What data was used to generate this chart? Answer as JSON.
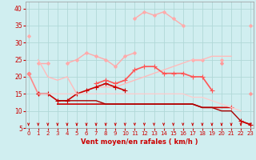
{
  "xlabel": "Vent moyen/en rafales ( km/h )",
  "background_color": "#d0eef0",
  "grid_color": "#b0d8d8",
  "x": [
    0,
    1,
    2,
    3,
    4,
    5,
    6,
    7,
    8,
    9,
    10,
    11,
    12,
    13,
    14,
    15,
    16,
    17,
    18,
    19,
    20,
    21,
    22,
    23
  ],
  "series": [
    {
      "color": "#ffaaaa",
      "data": [
        32,
        null,
        null,
        null,
        null,
        null,
        null,
        null,
        null,
        null,
        null,
        37,
        39,
        38,
        39,
        37,
        35,
        null,
        null,
        null,
        null,
        null,
        null,
        35
      ],
      "marker": "D",
      "ms": 2.0,
      "lw": 1.0
    },
    {
      "color": "#ffaaaa",
      "data": [
        null,
        24,
        24,
        null,
        24,
        25,
        27,
        26,
        25,
        23,
        26,
        27,
        null,
        null,
        null,
        null,
        null,
        25,
        25,
        null,
        25,
        null,
        null,
        null
      ],
      "marker": "D",
      "ms": 2.0,
      "lw": 1.0
    },
    {
      "color": "#ffbbbb",
      "data": [
        null,
        25,
        20,
        19,
        20,
        15,
        16,
        17,
        17,
        17,
        18,
        19,
        20,
        21,
        22,
        23,
        24,
        25,
        25,
        26,
        26,
        26,
        null,
        null
      ],
      "marker": null,
      "ms": 0,
      "lw": 1.0
    },
    {
      "color": "#ff8888",
      "data": [
        21,
        15,
        null,
        null,
        null,
        null,
        null,
        null,
        null,
        null,
        null,
        null,
        null,
        null,
        null,
        null,
        null,
        null,
        null,
        null,
        null,
        null,
        null,
        null
      ],
      "marker": "D",
      "ms": 2.5,
      "lw": 1.2
    },
    {
      "color": "#ff5555",
      "data": [
        null,
        null,
        null,
        null,
        null,
        null,
        null,
        18,
        19,
        18,
        19,
        22,
        23,
        23,
        21,
        21,
        21,
        20,
        20,
        16,
        null,
        11,
        null,
        null
      ],
      "marker": "+",
      "ms": 4.0,
      "lw": 1.2
    },
    {
      "color": "#cc0000",
      "data": [
        null,
        15,
        15,
        13,
        13,
        15,
        16,
        17,
        18,
        17,
        16,
        null,
        null,
        null,
        null,
        null,
        null,
        null,
        null,
        null,
        null,
        null,
        null,
        null
      ],
      "marker": "+",
      "ms": 4.0,
      "lw": 1.2
    },
    {
      "color": "#cc0000",
      "data": [
        null,
        null,
        null,
        12,
        12,
        12,
        12,
        12,
        12,
        12,
        12,
        12,
        12,
        12,
        12,
        12,
        12,
        12,
        11,
        11,
        11,
        11,
        null,
        null
      ],
      "marker": null,
      "ms": 0,
      "lw": 1.2
    },
    {
      "color": "#aa0000",
      "data": [
        null,
        null,
        null,
        13,
        13,
        13,
        13,
        13,
        12,
        12,
        12,
        12,
        12,
        12,
        12,
        12,
        12,
        12,
        11,
        11,
        10,
        10,
        7,
        6
      ],
      "marker": null,
      "ms": 0,
      "lw": 1.0
    },
    {
      "color": "#cc0000",
      "data": [
        null,
        null,
        null,
        null,
        null,
        null,
        null,
        null,
        null,
        null,
        null,
        null,
        null,
        null,
        null,
        null,
        null,
        null,
        null,
        null,
        null,
        null,
        7,
        6
      ],
      "marker": "+",
      "ms": 4.0,
      "lw": 1.2
    },
    {
      "color": "#ffcccc",
      "data": [
        null,
        15,
        15,
        15,
        15,
        15,
        15,
        15,
        15,
        15,
        15,
        15,
        15,
        15,
        15,
        15,
        15,
        14,
        14,
        13,
        12,
        11,
        10,
        null
      ],
      "marker": null,
      "ms": 0,
      "lw": 0.9
    },
    {
      "color": "#ff9999",
      "data": [
        null,
        null,
        null,
        null,
        null,
        null,
        null,
        null,
        null,
        null,
        null,
        null,
        null,
        null,
        null,
        null,
        null,
        null,
        null,
        null,
        24,
        null,
        null,
        15
      ],
      "marker": "D",
      "ms": 2.0,
      "lw": 1.0
    }
  ],
  "ylim": [
    5,
    42
  ],
  "yticks": [
    5,
    10,
    15,
    20,
    25,
    30,
    35,
    40
  ],
  "xlim": [
    -0.3,
    23.3
  ],
  "xticks": [
    0,
    1,
    2,
    3,
    4,
    5,
    6,
    7,
    8,
    9,
    10,
    11,
    12,
    13,
    14,
    15,
    16,
    17,
    18,
    19,
    20,
    21,
    22,
    23
  ]
}
